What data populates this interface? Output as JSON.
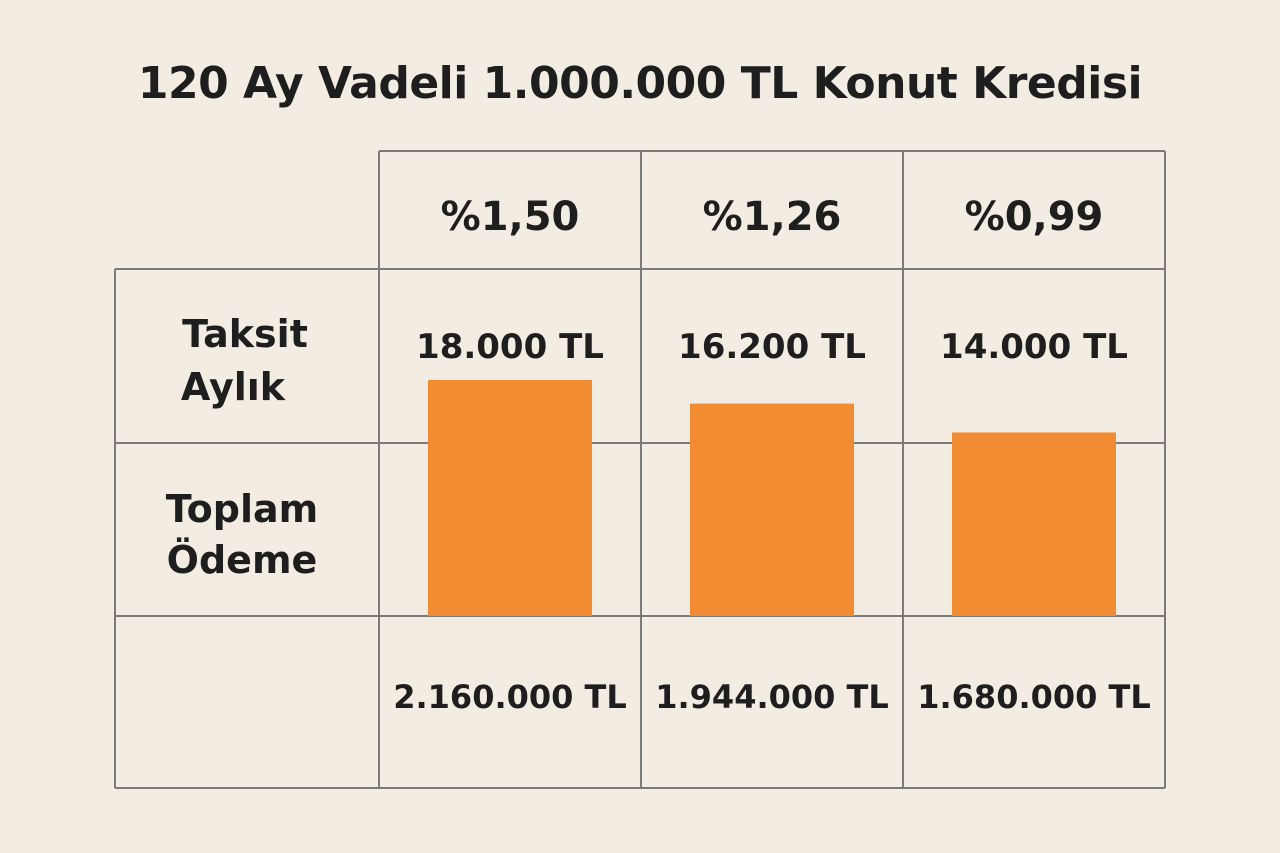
{
  "title": "120 Ay Vadeli 1.000.000 TL Konut Kredisi",
  "row_labels": {
    "monthly": [
      "Taksit",
      "Aylık"
    ],
    "total": [
      "Toplam",
      "Ödeme"
    ]
  },
  "colors": {
    "bar": "#f28c33",
    "grid": "#7a7a7a",
    "background": "#f3ece3"
  },
  "chart_data": {
    "type": "bar",
    "title": "120 Ay Vadeli 1.000.000 TL Konut Kredisi",
    "categories": [
      "%1,50",
      "%1,26",
      "%0,99"
    ],
    "series": [
      {
        "values": [
          18000,
          16200,
          14000
        ]
      }
    ],
    "data_labels": [
      "18.000 TL",
      "16.200 TL",
      "14.000 TL"
    ],
    "totals": [
      2160000,
      1944000,
      1680000
    ],
    "total_labels": [
      "2.160.000 TL",
      "1.944.000 TL",
      "1.680.000 TL"
    ],
    "grid": true
  }
}
